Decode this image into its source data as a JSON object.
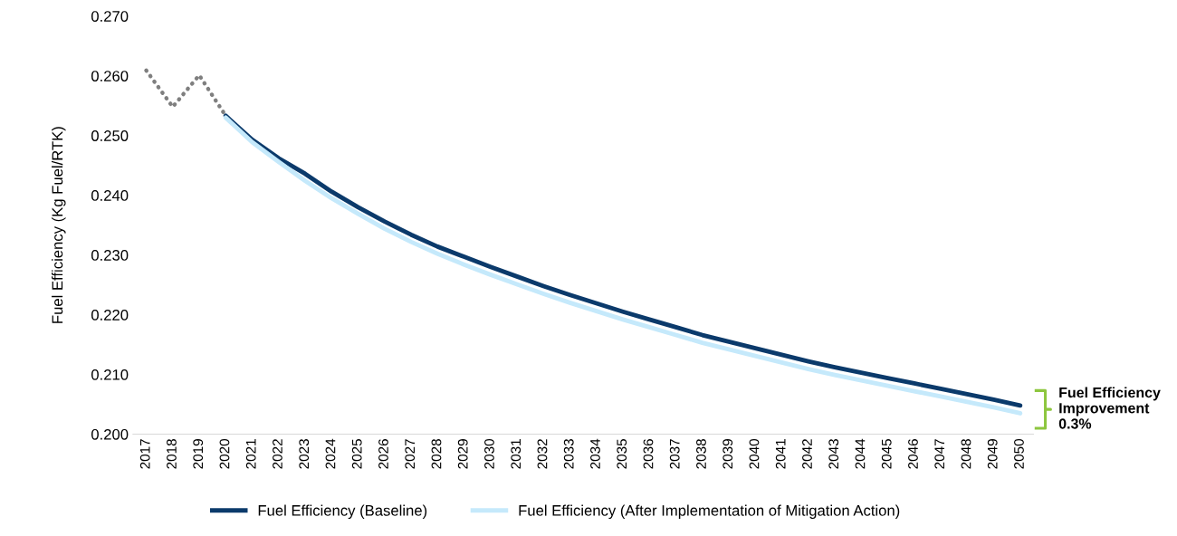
{
  "chart_data": {
    "type": "line",
    "ylabel": "Fuel Efficiency (Kg Fuel/RTK)",
    "categories": [
      "2017",
      "2018",
      "2019",
      "2020",
      "2021",
      "2022",
      "2023",
      "2024",
      "2025",
      "2026",
      "2027",
      "2028",
      "2029",
      "2030",
      "2031",
      "2032",
      "2033",
      "2034",
      "2035",
      "2036",
      "2037",
      "2038",
      "2039",
      "2040",
      "2041",
      "2042",
      "2043",
      "2044",
      "2045",
      "2046",
      "2047",
      "2048",
      "2049",
      "2050"
    ],
    "series": [
      {
        "color": "#7f7f7f",
        "line_style": "dotted",
        "values": [
          0.2609,
          0.2548,
          0.2601,
          0.2533,
          null,
          null,
          null,
          null,
          null,
          null,
          null,
          null,
          null,
          null,
          null,
          null,
          null,
          null,
          null,
          null,
          null,
          null,
          null,
          null,
          null,
          null,
          null,
          null,
          null,
          null,
          null,
          null,
          null,
          null
        ]
      },
      {
        "name": "Fuel Efficiency (Baseline)",
        "color": "#0b3a6b",
        "line_style": "solid",
        "values": [
          null,
          null,
          null,
          0.2533,
          0.2493,
          0.2462,
          0.2436,
          0.2406,
          0.238,
          0.2356,
          0.2334,
          0.2314,
          0.2297,
          0.228,
          0.2264,
          0.2248,
          0.2233,
          0.2219,
          0.2205,
          0.2192,
          0.2179,
          0.2166,
          0.2155,
          0.2144,
          0.2133,
          0.2122,
          0.2112,
          0.2103,
          0.2094,
          0.2085,
          0.2076,
          0.2067,
          0.2058,
          0.2048
        ]
      },
      {
        "name": "Fuel Efficiency (After Implementation of Mitigation Action)",
        "color": "#c5e9fb",
        "line_style": "solid",
        "values": [
          null,
          null,
          null,
          0.253,
          0.2489,
          0.2456,
          0.2424,
          0.2395,
          0.2369,
          0.2344,
          0.2322,
          0.2302,
          0.2284,
          0.2267,
          0.2251,
          0.2235,
          0.222,
          0.2206,
          0.2192,
          0.2179,
          0.2166,
          0.2153,
          0.2142,
          0.2131,
          0.212,
          0.2109,
          0.2099,
          0.209,
          0.2081,
          0.2072,
          0.2063,
          0.2054,
          0.2045,
          0.2035
        ]
      }
    ],
    "ylim": [
      0.2,
      0.27
    ],
    "yticks": [
      {
        "value": 0.2,
        "label": "0.200"
      },
      {
        "value": 0.21,
        "label": "0.210"
      },
      {
        "value": 0.22,
        "label": "0.220"
      },
      {
        "value": 0.23,
        "label": "0.230"
      },
      {
        "value": 0.24,
        "label": "0.240"
      },
      {
        "value": 0.25,
        "label": "0.250"
      },
      {
        "value": 0.26,
        "label": "0.260"
      },
      {
        "value": 0.27,
        "label": "0.270"
      }
    ],
    "annotations": [
      "Fuel Efficiency\nImprovement\n0.3%"
    ],
    "grid": false,
    "legend": "bottom",
    "marker": "none"
  }
}
